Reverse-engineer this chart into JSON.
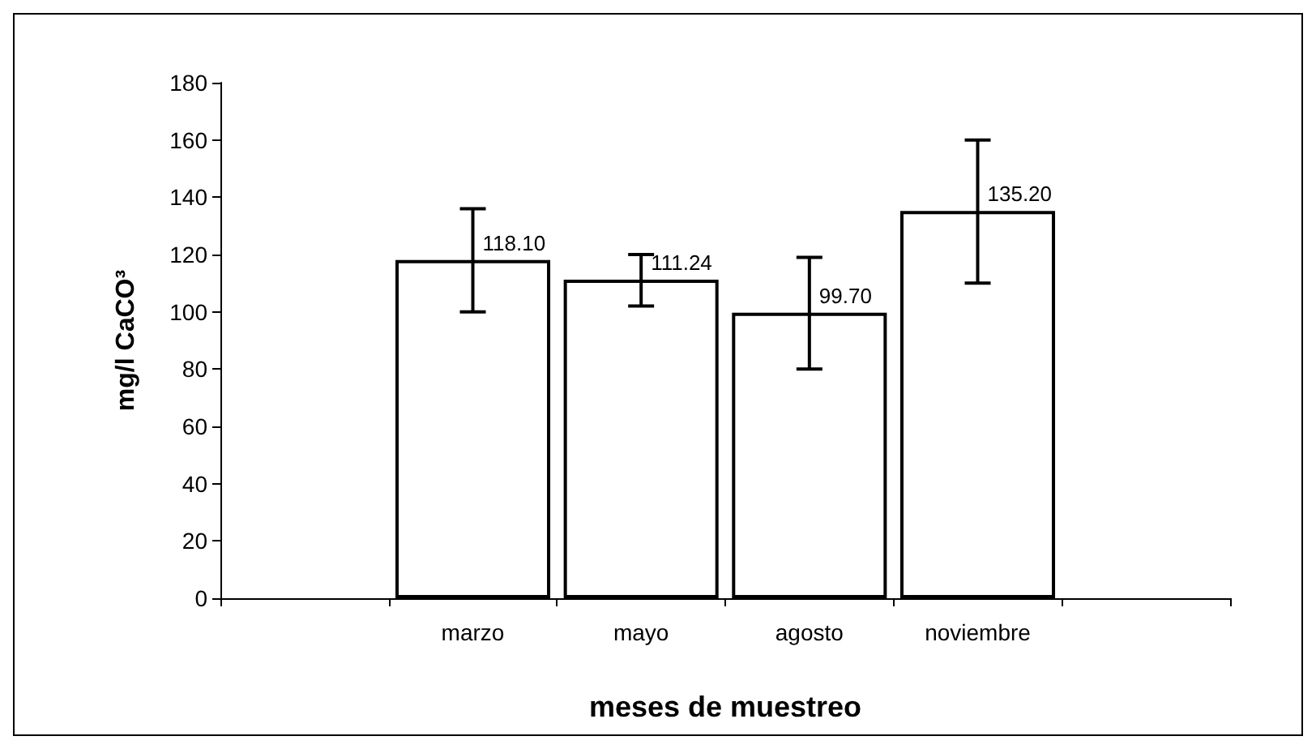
{
  "chart_data": {
    "type": "bar",
    "xlabel": "meses de muestreo",
    "ylabel": "mg/l CaCO³",
    "categories": [
      null,
      "marzo",
      "mayo",
      "agosto",
      "noviembre",
      null
    ],
    "values": [
      null,
      118.1,
      111.24,
      99.7,
      135.2,
      null
    ],
    "errors": [
      null,
      [
        100,
        136
      ],
      [
        102,
        120
      ],
      [
        80,
        119
      ],
      [
        110,
        160
      ],
      null
    ],
    "value_labels": [
      null,
      "118.10",
      "111.24",
      "99.70",
      "135.20",
      null
    ],
    "color": "#ffffff",
    "ylim": [
      0,
      180
    ],
    "yticks": [
      0,
      20,
      40,
      60,
      80,
      100,
      120,
      140,
      160,
      180
    ],
    "grid": false
  }
}
